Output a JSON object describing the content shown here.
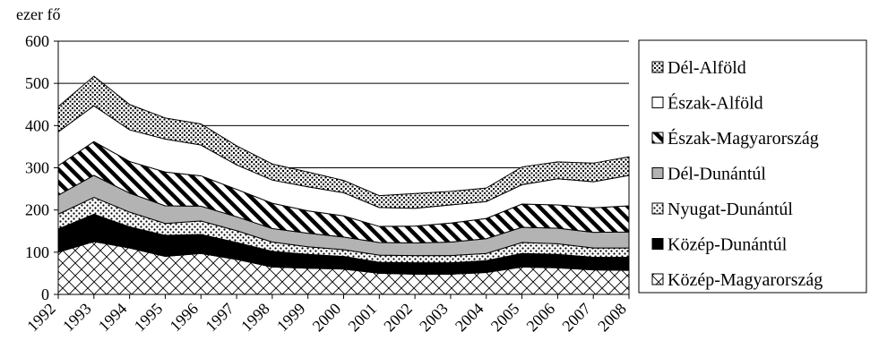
{
  "chart_data": {
    "type": "area",
    "stacked": true,
    "title": "",
    "xlabel": "",
    "ylabel": "ezer fő",
    "ylim": [
      0,
      600
    ],
    "yticks": [
      0,
      100,
      200,
      300,
      400,
      500,
      600
    ],
    "grid": true,
    "legend_position": "right",
    "x": [
      "1992",
      "1993",
      "1994",
      "1995",
      "1996",
      "1997",
      "1998",
      "1999",
      "2000",
      "2001",
      "2002",
      "2003",
      "2004",
      "2005",
      "2006",
      "2007",
      "2008"
    ],
    "series": [
      {
        "name": "Közép-Magyarország",
        "pattern": "crosshatch",
        "values": [
          100,
          125,
          110,
          90,
          97,
          83,
          65,
          62,
          60,
          50,
          48,
          48,
          52,
          65,
          63,
          58,
          57
        ]
      },
      {
        "name": "Közép-Dunántúl",
        "pattern": "solid-black",
        "values": [
          55,
          65,
          50,
          50,
          45,
          40,
          37,
          33,
          30,
          26,
          27,
          27,
          28,
          32,
          32,
          30,
          31
        ]
      },
      {
        "name": "Nyugat-Dunántúl",
        "pattern": "dots",
        "values": [
          35,
          40,
          35,
          28,
          32,
          28,
          22,
          18,
          16,
          17,
          17,
          17,
          17,
          26,
          25,
          22,
          22
        ]
      },
      {
        "name": "Dél-Dunántúl",
        "pattern": "solid-gray",
        "values": [
          45,
          52,
          45,
          42,
          35,
          33,
          32,
          32,
          30,
          30,
          30,
          32,
          35,
          36,
          37,
          37,
          38
        ]
      },
      {
        "name": "Észak-Magyarország",
        "pattern": "diagonal-stripes",
        "values": [
          70,
          80,
          75,
          80,
          72,
          65,
          60,
          53,
          50,
          38,
          40,
          45,
          48,
          55,
          55,
          58,
          62
        ]
      },
      {
        "name": "Észak-Alföld",
        "pattern": "white",
        "values": [
          80,
          85,
          75,
          78,
          73,
          58,
          55,
          57,
          55,
          45,
          42,
          43,
          40,
          46,
          62,
          62,
          72
        ]
      },
      {
        "name": "Dél-Alföld",
        "pattern": "dense-dots",
        "values": [
          60,
          70,
          60,
          50,
          50,
          45,
          38,
          35,
          29,
          28,
          35,
          32,
          32,
          42,
          40,
          44,
          44
        ]
      }
    ]
  }
}
